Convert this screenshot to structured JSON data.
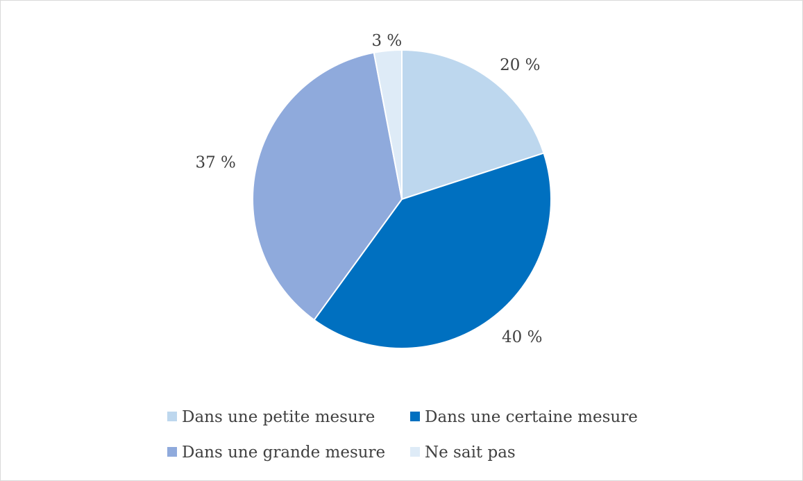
{
  "chart_data": {
    "type": "pie",
    "categories": [
      "Dans une petite mesure",
      "Dans une certaine mesure",
      "Dans une grande mesure",
      "Ne sait pas"
    ],
    "values": [
      20,
      40,
      37,
      3
    ],
    "labels": [
      "20 %",
      "40 %",
      "37 %",
      "3 %"
    ],
    "colors": [
      "#bdd7ee",
      "#0070c0",
      "#8faadc",
      "#deebf7"
    ],
    "start_angle_deg": 0,
    "direction": "clockwise",
    "legend_position": "bottom",
    "title": ""
  }
}
